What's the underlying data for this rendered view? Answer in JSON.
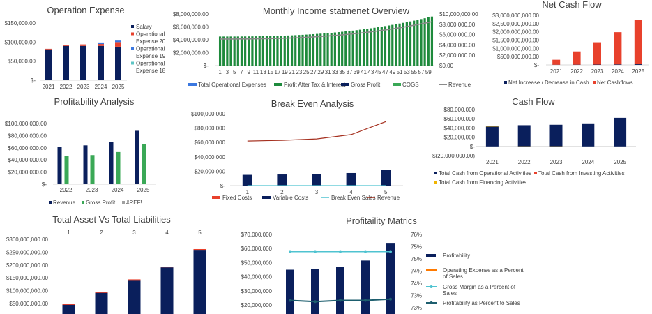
{
  "colors": {
    "navy": "#0a1f5c",
    "red": "#e8412c",
    "blue": "#3b78e0",
    "teal": "#5ec5c5",
    "green": "#1e8a3c",
    "green_light": "#3aa856",
    "revenue_line": "#8a8a8a",
    "brown": "#a5301f",
    "gold": "#f0b400",
    "orange": "#ff7a00",
    "cyan": "#4fc3d0",
    "dark_teal": "#1d5e6e",
    "gray": "#a0a0a0"
  },
  "chart_data": [
    {
      "id": "operation-expense",
      "type": "bar",
      "stacked": true,
      "title": "Operation Expense",
      "categories": [
        "2021",
        "2022",
        "2023",
        "2024",
        "2025"
      ],
      "y_ticks": [
        "$150,000.00",
        "$100,000.00",
        "$50,000.00",
        "$-"
      ],
      "ylim": [
        0,
        150000
      ],
      "series": [
        {
          "name": "Salary",
          "color": "navy",
          "values": [
            81000,
            90000,
            90000,
            90000,
            88000
          ]
        },
        {
          "name": "Operational Expense 20",
          "color": "red",
          "values": [
            1500,
            2000,
            4000,
            5000,
            12000
          ]
        },
        {
          "name": "Operational Expense 19",
          "color": "blue",
          "values": [
            0,
            0,
            0,
            4000,
            4000
          ]
        },
        {
          "name": "Operational Expense 18",
          "color": "teal",
          "values": [
            0,
            0,
            0,
            0,
            0
          ]
        }
      ],
      "legend_lines": [
        {
          "text": "Salary",
          "color": "navy"
        },
        {
          "text": "Operational",
          "color": "red"
        },
        {
          "text": "Expense 20",
          "color": null
        },
        {
          "text": "Operational",
          "color": "blue"
        },
        {
          "text": "Expense 19",
          "color": null
        },
        {
          "text": "Operational",
          "color": "teal"
        },
        {
          "text": "Expense 18",
          "color": null
        }
      ]
    },
    {
      "id": "monthly-income",
      "type": "bar",
      "title": "Monthly Income statmenet Overview",
      "x": {
        "start": 1,
        "end": 60
      },
      "x_tick_labels": [
        "1",
        "3",
        "5",
        "7",
        "9",
        "11",
        "13",
        "15",
        "17",
        "19",
        "21",
        "23",
        "25",
        "27",
        "29",
        "31",
        "33",
        "35",
        "37",
        "39",
        "41",
        "43",
        "45",
        "47",
        "49",
        "51",
        "53",
        "55",
        "57",
        "59"
      ],
      "y_left_ticks": [
        "$8,000,000.00",
        "$6,000,000.00",
        "$4,000,000.00",
        "$2,000,000.00",
        "$-"
      ],
      "y_right_ticks": [
        "$10,000,000.00",
        "$8,000,000.00",
        "$6,000,000.00",
        "$4,000,000.00",
        "$2,000,000.00",
        "$0.00"
      ],
      "ylim_left": [
        0,
        8000000
      ],
      "ylim_right": [
        0,
        10000000
      ],
      "series": [
        {
          "name": "Total Operational Expenses",
          "color": "blue",
          "kind": "bar"
        },
        {
          "name": "Profit After Tax & Interest",
          "color": "green",
          "kind": "bar"
        },
        {
          "name": "Gross Profit",
          "color": "navy",
          "kind": "bar"
        },
        {
          "name": "COGS",
          "color": "green_light",
          "kind": "bar"
        },
        {
          "name": "Revenue",
          "color": "revenue_line",
          "kind": "line",
          "start": 5150000,
          "end": 8500000
        }
      ],
      "bars": {
        "start": 4500000,
        "end": 7600000,
        "curve": 2.6
      }
    },
    {
      "id": "net-cash-flow",
      "type": "bar",
      "title": "Net Cash Flow",
      "categories": [
        "2021",
        "2022",
        "2023",
        "2024",
        "2025"
      ],
      "y_ticks": [
        "$3,000,000,000.00",
        "$2,500,000,000.00",
        "$2,000,000,000.00",
        "$1,500,000,000.00",
        "$1,000,000,000.00",
        "$500,000,000.00",
        "$-"
      ],
      "ylim": [
        0,
        3000000000
      ],
      "series": [
        {
          "name": "Net Increase / Decrease in Cash",
          "color": "navy",
          "values": [
            10000000,
            15000000,
            20000000,
            30000000,
            40000000
          ]
        },
        {
          "name": "Net Cashflows",
          "color": "red",
          "values": [
            300000000,
            800000000,
            1350000000,
            1950000000,
            2700000000
          ]
        }
      ]
    },
    {
      "id": "profitability-analysis",
      "type": "bar",
      "title": "Profitability Analysis",
      "categories": [
        "2022",
        "2023",
        "2024",
        "2025"
      ],
      "y_ticks": [
        "$100,000,000.00",
        "$80,000,000.00",
        "$60,000,000.00",
        "$40,000,000.00",
        "$20,000,000.00",
        "$-"
      ],
      "ylim": [
        0,
        100000000
      ],
      "series": [
        {
          "name": "Revenue",
          "color": "navy",
          "values": [
            62000000,
            64000000,
            70000000,
            88000000
          ]
        },
        {
          "name": "Gross Profit",
          "color": "green_light",
          "values": [
            47000000,
            48000000,
            53000000,
            66000000
          ]
        },
        {
          "name": "#REF!",
          "color": "gray",
          "values": [
            0,
            0,
            0,
            0
          ]
        }
      ]
    },
    {
      "id": "break-even",
      "type": "bar",
      "title": "Break Even Analysis",
      "categories": [
        "1",
        "2",
        "3",
        "4",
        "5"
      ],
      "y_ticks": [
        "$100,000,000",
        "$80,000,000",
        "$60,000,000",
        "$40,000,000",
        "$20,000,000",
        "$-"
      ],
      "ylim": [
        0,
        100000000
      ],
      "series": [
        {
          "name": "Fixed Costs",
          "color": "red",
          "kind": "bar",
          "values": [
            0,
            0,
            0,
            0,
            0
          ]
        },
        {
          "name": "Variable Costs",
          "color": "navy",
          "kind": "bar",
          "values": [
            15000000,
            15500000,
            16500000,
            17500000,
            22000000
          ]
        },
        {
          "name": "Break Even Sales",
          "color": "cyan",
          "kind": "line",
          "values": [
            0,
            0,
            0,
            0,
            0
          ]
        },
        {
          "name": "Revenue",
          "color": "brown",
          "kind": "line",
          "values": [
            62000000,
            63000000,
            65000000,
            71000000,
            89000000
          ]
        }
      ]
    },
    {
      "id": "cash-flow",
      "type": "bar",
      "stacked": true,
      "title": "Cash Flow",
      "categories": [
        "2021",
        "2022",
        "2023",
        "2024",
        "2025"
      ],
      "y_ticks": [
        "$80,000,000",
        "$60,000,000",
        "$40,000,000",
        "$20,000,000",
        "$-",
        "$(20,000,000.00)"
      ],
      "ylim": [
        -20000000,
        80000000
      ],
      "series": [
        {
          "name": "Total Cash from Operational Activities",
          "color": "navy",
          "values": [
            43000000,
            46000000,
            47000000,
            50000000,
            62000000
          ]
        },
        {
          "name": "Total Cash from Investing Activities",
          "color": "red",
          "values": [
            0,
            0,
            0,
            0,
            0
          ]
        },
        {
          "name": "Total Cash from Financing Activities",
          "color": "gold",
          "values": [
            1000000,
            -1000000,
            -1000000,
            0,
            0
          ]
        }
      ]
    },
    {
      "id": "assets-liabilities",
      "type": "bar",
      "title": "Total Asset Vs Total Liabilities",
      "categories": [
        "1",
        "2",
        "3",
        "4",
        "5"
      ],
      "y_ticks": [
        "$300,000,000.00",
        "$250,000,000.00",
        "$200,000,000.00",
        "$150,000,000.00",
        "$100,000,000.00",
        "$50,000,000.00"
      ],
      "ylim": [
        0,
        300000000
      ],
      "series": [
        {
          "name": "Total Assets",
          "color": "navy",
          "values": [
            46000000,
            92000000,
            142000000,
            191000000,
            259000000
          ]
        },
        {
          "name": "Total Liabilities",
          "color": "red",
          "values": [
            1500000,
            2000000,
            2000000,
            2500000,
            3000000
          ]
        }
      ]
    },
    {
      "id": "profitability-matrics",
      "type": "bar",
      "title": "Profitaility Matrics",
      "categories": [
        "1",
        "2",
        "3",
        "4",
        "5"
      ],
      "y_left_ticks": [
        "$70,000,000",
        "$60,000,000",
        "$50,000,000",
        "$40,000,000",
        "$30,000,000",
        "$20,000,000"
      ],
      "y_right_ticks": [
        "76%",
        "75%",
        "75%",
        "74%",
        "74%",
        "73%",
        "73%"
      ],
      "ylim_left": [
        20000000,
        70000000
      ],
      "ylim_right": [
        73,
        76
      ],
      "series": [
        {
          "name": "Profitability",
          "color": "navy",
          "kind": "bar",
          "values": [
            45000000,
            45500000,
            47000000,
            51500000,
            64000000
          ]
        },
        {
          "name": "Operating Expense as a Percent of Sales",
          "color": "orange",
          "kind": "line",
          "values": [
            null,
            null,
            null,
            null,
            null
          ]
        },
        {
          "name": "Gross Margin as a Percent of Sales",
          "color": "cyan",
          "kind": "line",
          "values": [
            75.3,
            75.3,
            75.3,
            75.3,
            75.3
          ]
        },
        {
          "name": "Profitability as Percent to Sales",
          "color": "dark_teal",
          "kind": "line",
          "values": [
            73.3,
            73.25,
            73.3,
            73.3,
            73.35
          ]
        }
      ],
      "legend_lines": [
        {
          "text": "Profitability",
          "color": "navy",
          "kind": "bar"
        },
        {
          "text": "Operating Expense as a Percent",
          "color": "orange",
          "kind": "line"
        },
        {
          "text": "of Sales",
          "color": null
        },
        {
          "text": "Gross Margin as a Percent of",
          "color": "cyan",
          "kind": "line"
        },
        {
          "text": "Sales",
          "color": null
        },
        {
          "text": "Profitability as Percent to Sales",
          "color": "dark_teal",
          "kind": "line"
        }
      ]
    }
  ]
}
